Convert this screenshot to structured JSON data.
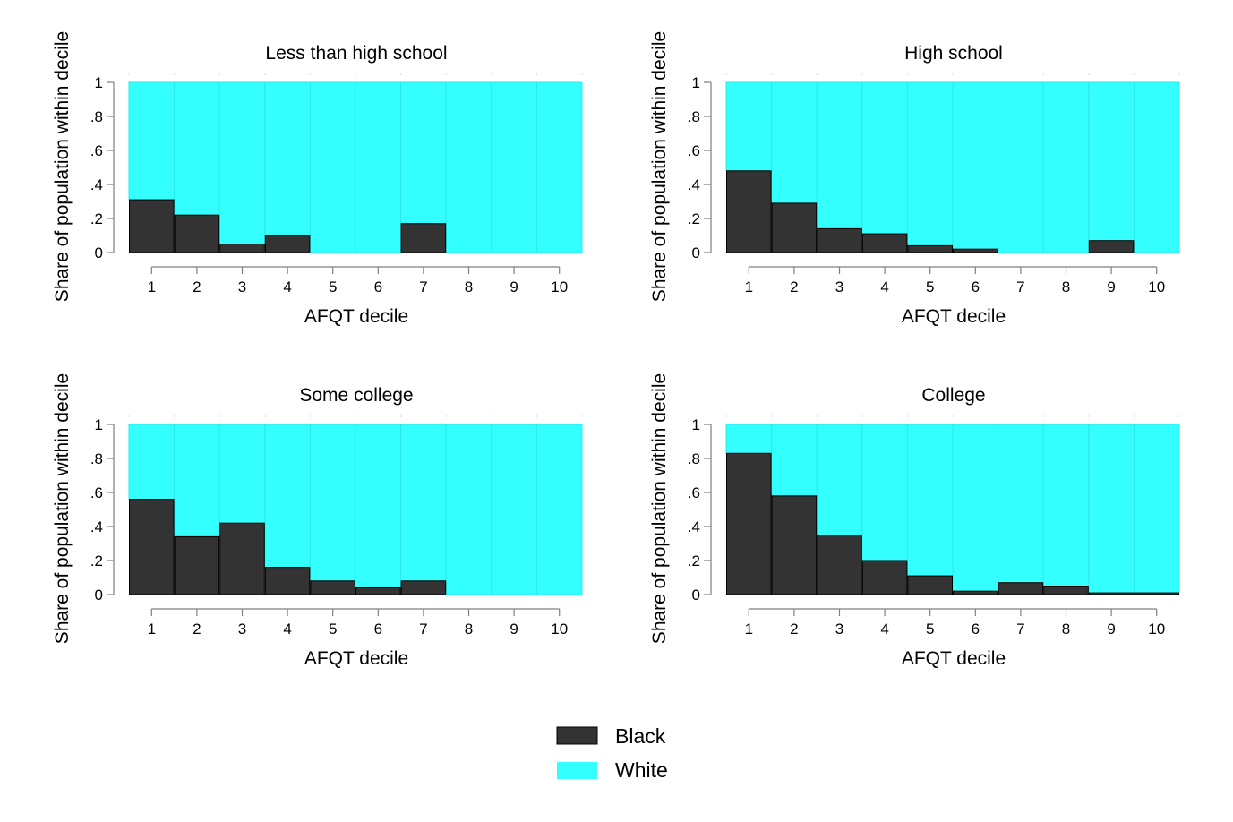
{
  "colors": {
    "black": "#333333",
    "white": "#33ffff",
    "bar_edge": "#000000",
    "axis": "#7f7f7f"
  },
  "legend": {
    "placement": "bottom-center",
    "items": [
      {
        "label": "Black",
        "color": "#333333"
      },
      {
        "label": "White",
        "color": "#33ffff"
      }
    ]
  },
  "chart_data": [
    {
      "type": "bar",
      "stacked": true,
      "title": "Less than high school",
      "xlabel": "AFQT decile",
      "ylabel": "Share of population within decile",
      "categories": [
        "1",
        "2",
        "3",
        "4",
        "5",
        "6",
        "7",
        "8",
        "9",
        "10"
      ],
      "yticks": [
        "0",
        ".2",
        ".4",
        ".6",
        ".8",
        "1"
      ],
      "ylim": [
        0,
        1
      ],
      "series": [
        {
          "name": "Black",
          "values": [
            0.31,
            0.22,
            0.05,
            0.1,
            0,
            0,
            0.17,
            0,
            0,
            0
          ]
        },
        {
          "name": "White",
          "values": [
            0.69,
            0.78,
            0.95,
            0.9,
            1,
            1,
            0.83,
            1,
            1,
            1
          ]
        }
      ]
    },
    {
      "type": "bar",
      "stacked": true,
      "title": "High school",
      "xlabel": "AFQT decile",
      "ylabel": "Share of population within decile",
      "categories": [
        "1",
        "2",
        "3",
        "4",
        "5",
        "6",
        "7",
        "8",
        "9",
        "10"
      ],
      "yticks": [
        "0",
        ".2",
        ".4",
        ".6",
        ".8",
        "1"
      ],
      "ylim": [
        0,
        1
      ],
      "series": [
        {
          "name": "Black",
          "values": [
            0.48,
            0.29,
            0.14,
            0.11,
            0.04,
            0.02,
            0,
            0,
            0.07,
            0
          ]
        },
        {
          "name": "White",
          "values": [
            0.52,
            0.71,
            0.86,
            0.89,
            0.96,
            0.98,
            1,
            1,
            0.93,
            1
          ]
        }
      ]
    },
    {
      "type": "bar",
      "stacked": true,
      "title": "Some college",
      "xlabel": "AFQT decile",
      "ylabel": "Share of population within decile",
      "categories": [
        "1",
        "2",
        "3",
        "4",
        "5",
        "6",
        "7",
        "8",
        "9",
        "10"
      ],
      "yticks": [
        "0",
        ".2",
        ".4",
        ".6",
        ".8",
        "1"
      ],
      "ylim": [
        0,
        1
      ],
      "series": [
        {
          "name": "Black",
          "values": [
            0.56,
            0.34,
            0.42,
            0.16,
            0.08,
            0.04,
            0.08,
            0,
            0,
            0
          ]
        },
        {
          "name": "White",
          "values": [
            0.44,
            0.66,
            0.58,
            0.84,
            0.92,
            0.96,
            0.92,
            1,
            1,
            1
          ]
        }
      ]
    },
    {
      "type": "bar",
      "stacked": true,
      "title": "College",
      "xlabel": "AFQT decile",
      "ylabel": "Share of population within decile",
      "categories": [
        "1",
        "2",
        "3",
        "4",
        "5",
        "6",
        "7",
        "8",
        "9",
        "10"
      ],
      "yticks": [
        "0",
        ".2",
        ".4",
        ".6",
        ".8",
        "1"
      ],
      "ylim": [
        0,
        1
      ],
      "series": [
        {
          "name": "Black",
          "values": [
            0.83,
            0.58,
            0.35,
            0.2,
            0.11,
            0.02,
            0.07,
            0.05,
            0.01,
            0.01
          ]
        },
        {
          "name": "White",
          "values": [
            0.17,
            0.42,
            0.65,
            0.8,
            0.89,
            0.98,
            0.93,
            0.95,
            0.99,
            0.99
          ]
        }
      ]
    }
  ]
}
